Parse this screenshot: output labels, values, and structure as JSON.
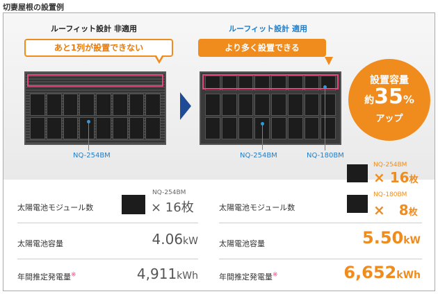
{
  "page_title": "切妻屋根の設置例",
  "left": {
    "title": "ルーフィット設計 非適用",
    "bubble": "あと1列が設置できない",
    "panel_label": "NQ-254BM"
  },
  "right": {
    "title": "ルーフィット設計 適用",
    "bubble": "より多く設置できる",
    "panel_label_a": "NQ-254BM",
    "panel_label_b": "NQ-180BM"
  },
  "badge": {
    "line1": "設置容量",
    "prefix": "約",
    "number": "35",
    "percent": "%",
    "line3": "アップ"
  },
  "rows": {
    "modules_label": "太陽電池モジュール数",
    "capacity_label": "太陽電池容量",
    "annual_label": "年間推定発電量",
    "annual_mark": "※"
  },
  "left_values": {
    "model": "NQ-254BM",
    "count": "× 16枚",
    "capacity": "4.06",
    "capacity_unit": "kW",
    "annual": "4,911",
    "annual_unit": "kWh"
  },
  "right_values": {
    "model_a": "NQ-254BM",
    "count_a": "× 16",
    "count_a_unit": "枚",
    "model_b": "NQ-180BM",
    "count_b": "×　8",
    "count_b_unit": "枚",
    "capacity": "5.50",
    "capacity_unit": "kW",
    "annual": "6,652",
    "annual_unit": "kWh"
  },
  "colors": {
    "accent": "#f08c1e",
    "arrow": "#1f4a96",
    "label_blue": "#1f7ec9",
    "highlight": "#e04a7a"
  }
}
